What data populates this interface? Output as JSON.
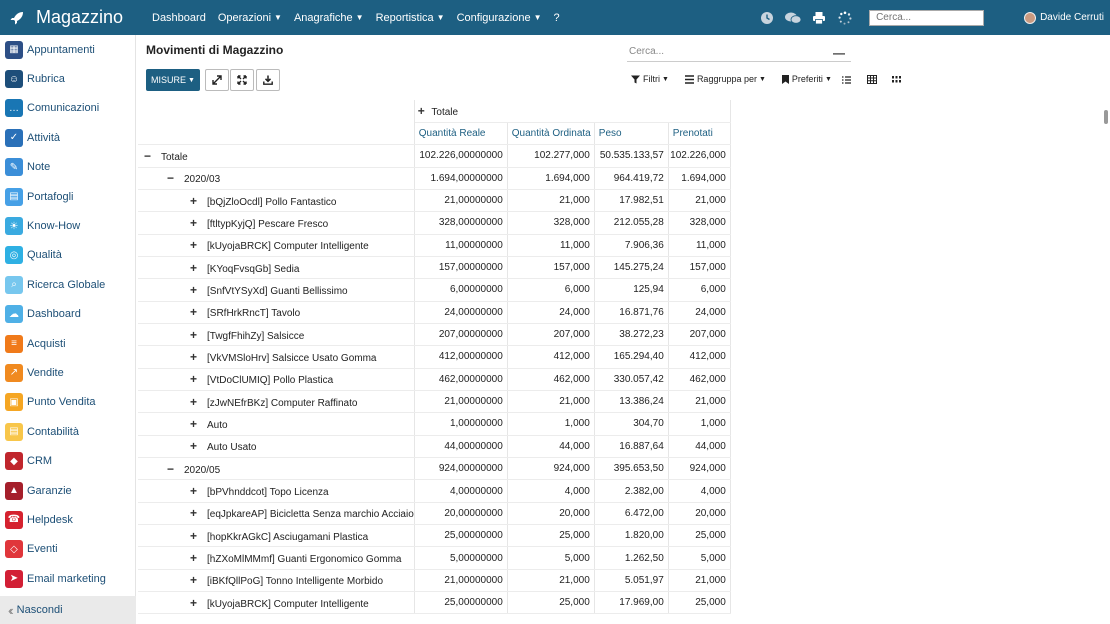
{
  "app": {
    "title": "Magazzino"
  },
  "topbar": {
    "menu": [
      {
        "label": "Dashboard",
        "caret": false
      },
      {
        "label": "Operazioni",
        "caret": true
      },
      {
        "label": "Anagrafiche",
        "caret": true
      },
      {
        "label": "Reportistica",
        "caret": true
      },
      {
        "label": "Configurazione",
        "caret": true
      },
      {
        "label": "?",
        "caret": false
      }
    ],
    "search_placeholder": "Cerca...",
    "user": "Davide Cerruti",
    "icons": [
      "clock-icon",
      "chat-icon",
      "print-icon",
      "loading-icon"
    ]
  },
  "sidebar": {
    "items": [
      {
        "label": "Appuntamenti",
        "color": "#2d4f86",
        "icon": "calendar-icon"
      },
      {
        "label": "Rubrica",
        "color": "#1d4e7a",
        "icon": "contacts-icon"
      },
      {
        "label": "Comunicazioni",
        "color": "#1976b4",
        "icon": "comments-icon"
      },
      {
        "label": "Attività",
        "color": "#2a70b8",
        "icon": "checkbox-icon"
      },
      {
        "label": "Note",
        "color": "#3b8ed8",
        "icon": "note-icon"
      },
      {
        "label": "Portafogli",
        "color": "#46a0e6",
        "icon": "wallet-icon"
      },
      {
        "label": "Know-How",
        "color": "#3aaae0",
        "icon": "bulb-icon"
      },
      {
        "label": "Qualità",
        "color": "#2eb0e3",
        "icon": "quality-icon"
      },
      {
        "label": "Ricerca Globale",
        "color": "#77c7ee",
        "icon": "search-icon"
      },
      {
        "label": "Dashboard",
        "color": "#4fb0e6",
        "icon": "dashboard-icon"
      },
      {
        "label": "Acquisti",
        "color": "#f07a1a",
        "icon": "purchase-icon"
      },
      {
        "label": "Vendite",
        "color": "#f08a20",
        "icon": "sales-icon"
      },
      {
        "label": "Punto Vendita",
        "color": "#f5a623",
        "icon": "pos-icon"
      },
      {
        "label": "Contabilità",
        "color": "#f8c64a",
        "icon": "accounting-icon"
      },
      {
        "label": "CRM",
        "color": "#c0262d",
        "icon": "crm-icon"
      },
      {
        "label": "Garanzie",
        "color": "#a51f2b",
        "icon": "shield-icon"
      },
      {
        "label": "Helpdesk",
        "color": "#d5222f",
        "icon": "headset-icon"
      },
      {
        "label": "Eventi",
        "color": "#e0363b",
        "icon": "ticket-icon"
      },
      {
        "label": "Email marketing",
        "color": "#d21f35",
        "icon": "send-icon"
      }
    ],
    "footer": "Nascondi"
  },
  "main": {
    "title": "Movimenti di Magazzino",
    "search_placeholder": "Cerca...",
    "measures_button": "MISURE",
    "filters": [
      {
        "label": "Filtri",
        "icon": "filter-icon"
      },
      {
        "label": "Raggruppa per",
        "icon": "group-icon"
      },
      {
        "label": "Preferiti",
        "icon": "bookmark-icon"
      }
    ],
    "views": [
      "list-view-icon",
      "pivot-view-icon",
      "grid-view-icon"
    ]
  },
  "pivot": {
    "column_group": "Totale",
    "headers": [
      "Quantità Reale",
      "Quantità Ordinata",
      "Peso",
      "Prenotati"
    ],
    "rows": [
      {
        "level": 0,
        "sign": "−",
        "label": "Totale",
        "bold": true,
        "values": [
          "102.226,00000000",
          "102.277,000",
          "50.535.133,57",
          "102.226,000"
        ]
      },
      {
        "level": 1,
        "sign": "−",
        "label": "2020/03",
        "bold": false,
        "values": [
          "1.694,00000000",
          "1.694,000",
          "964.419,72",
          "1.694,000"
        ]
      },
      {
        "level": 2,
        "sign": "+",
        "label": "[bQjZloOcdl] Pollo Fantastico",
        "bold": false,
        "values": [
          "21,00000000",
          "21,000",
          "17.982,51",
          "21,000"
        ]
      },
      {
        "level": 2,
        "sign": "+",
        "label": "[ftltypKyjQ] Pescare Fresco",
        "bold": false,
        "values": [
          "328,00000000",
          "328,000",
          "212.055,28",
          "328,000"
        ]
      },
      {
        "level": 2,
        "sign": "+",
        "label": "[kUyojaBRCK] Computer Intelligente",
        "bold": false,
        "values": [
          "11,00000000",
          "11,000",
          "7.906,36",
          "11,000"
        ]
      },
      {
        "level": 2,
        "sign": "+",
        "label": "[KYoqFvsqGb] Sedia",
        "bold": false,
        "values": [
          "157,00000000",
          "157,000",
          "145.275,24",
          "157,000"
        ]
      },
      {
        "level": 2,
        "sign": "+",
        "label": "[SnfVtYSyXd] Guanti Bellissimo",
        "bold": false,
        "values": [
          "6,00000000",
          "6,000",
          "125,94",
          "6,000"
        ]
      },
      {
        "level": 2,
        "sign": "+",
        "label": "[SRfHrkRncT] Tavolo",
        "bold": false,
        "values": [
          "24,00000000",
          "24,000",
          "16.871,76",
          "24,000"
        ]
      },
      {
        "level": 2,
        "sign": "+",
        "label": "[TwgfFhihZy] Salsicce",
        "bold": false,
        "values": [
          "207,00000000",
          "207,000",
          "38.272,23",
          "207,000"
        ]
      },
      {
        "level": 2,
        "sign": "+",
        "label": "[VkVMSloHrv] Salsicce Usato Gomma",
        "bold": false,
        "values": [
          "412,00000000",
          "412,000",
          "165.294,40",
          "412,000"
        ]
      },
      {
        "level": 2,
        "sign": "+",
        "label": "[VtDoClUMIQ] Pollo Plastica",
        "bold": false,
        "values": [
          "462,00000000",
          "462,000",
          "330.057,42",
          "462,000"
        ]
      },
      {
        "level": 2,
        "sign": "+",
        "label": "[zJwNEfrBKz] Computer Raffinato",
        "bold": false,
        "values": [
          "21,00000000",
          "21,000",
          "13.386,24",
          "21,000"
        ]
      },
      {
        "level": 2,
        "sign": "+",
        "label": "Auto",
        "bold": false,
        "values": [
          "1,00000000",
          "1,000",
          "304,70",
          "1,000"
        ]
      },
      {
        "level": 2,
        "sign": "+",
        "label": "Auto Usato",
        "bold": false,
        "values": [
          "44,00000000",
          "44,000",
          "16.887,64",
          "44,000"
        ]
      },
      {
        "level": 1,
        "sign": "−",
        "label": "2020/05",
        "bold": false,
        "values": [
          "924,00000000",
          "924,000",
          "395.653,50",
          "924,000"
        ]
      },
      {
        "level": 2,
        "sign": "+",
        "label": "[bPVhnddcot] Topo Licenza",
        "bold": false,
        "values": [
          "4,00000000",
          "4,000",
          "2.382,00",
          "4,000"
        ]
      },
      {
        "level": 2,
        "sign": "+",
        "label": "[eqJpkareAP] Bicicletta Senza marchio Acciaio",
        "bold": false,
        "values": [
          "20,00000000",
          "20,000",
          "6.472,00",
          "20,000"
        ]
      },
      {
        "level": 2,
        "sign": "+",
        "label": "[hopKkrAGkC] Asciugamani Plastica",
        "bold": false,
        "values": [
          "25,00000000",
          "25,000",
          "1.820,00",
          "25,000"
        ]
      },
      {
        "level": 2,
        "sign": "+",
        "label": "[hZXoMlMMmf] Guanti Ergonomico Gomma",
        "bold": false,
        "values": [
          "5,00000000",
          "5,000",
          "1.262,50",
          "5,000"
        ]
      },
      {
        "level": 2,
        "sign": "+",
        "label": "[iBKfQllPoG] Tonno Intelligente Morbido",
        "bold": false,
        "values": [
          "21,00000000",
          "21,000",
          "5.051,97",
          "21,000"
        ]
      },
      {
        "level": 2,
        "sign": "+",
        "label": "[kUyojaBRCK] Computer Intelligente",
        "bold": false,
        "values": [
          "25,00000000",
          "25,000",
          "17.969,00",
          "25,000"
        ]
      }
    ]
  }
}
